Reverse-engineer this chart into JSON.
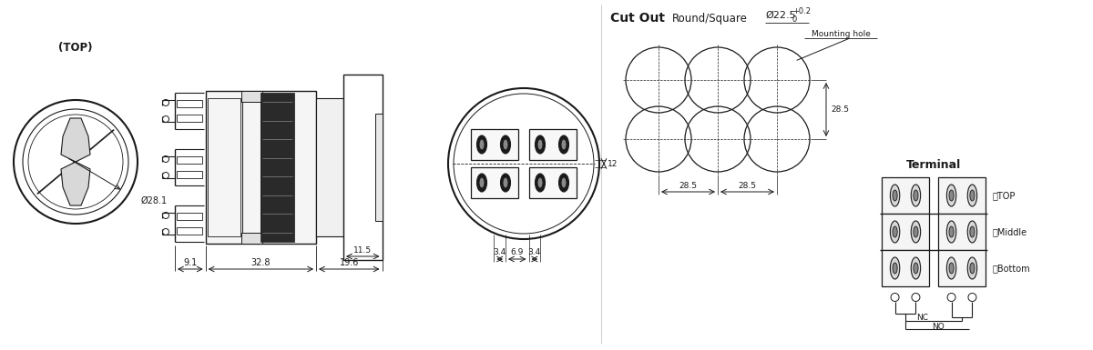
{
  "bg_color": "#ffffff",
  "line_color": "#1a1a1a",
  "top_label": "上TOP",
  "middle_label": "中Middle",
  "bottom_label": "下Bottom",
  "nc_label": "NC",
  "no_label": "NO"
}
